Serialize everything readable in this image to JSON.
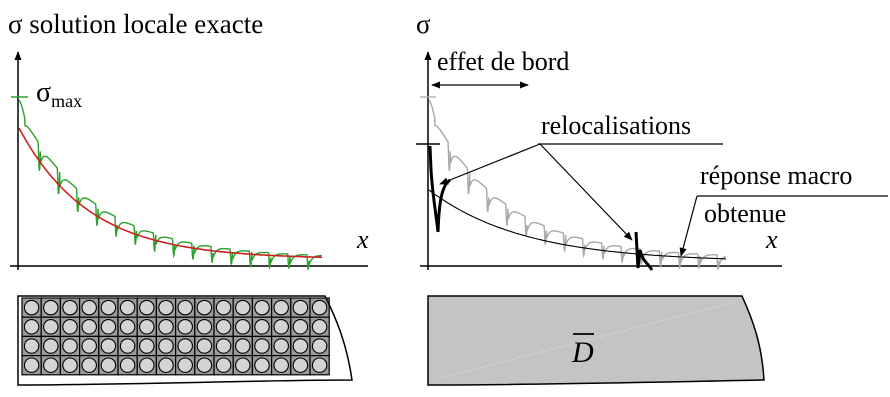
{
  "left_panel": {
    "title": "σ solution locale exacte",
    "sigma_max_symbol": "σ",
    "sigma_max_subscript": "max",
    "x_label": "x",
    "curve_colors": {
      "local": "#2ca02c",
      "fit": "#cc2222"
    },
    "cell_grid": {
      "rows": 4,
      "cols": 16,
      "cell_fill": "#9a9a9a",
      "inclusion_fill": "#d4d4d4"
    }
  },
  "right_panel": {
    "title": "σ",
    "edge_effect_label": "effet de bord",
    "relocalization_label": "relocalisations",
    "macro_response_line1": "réponse macro",
    "macro_response_line2": "obtenue",
    "x_label": "x",
    "domain_bar": "D",
    "curve_colors": {
      "local_grey": "#a8a8a8",
      "macro": "#000000"
    },
    "domain_fill": "#c4c4c4"
  }
}
